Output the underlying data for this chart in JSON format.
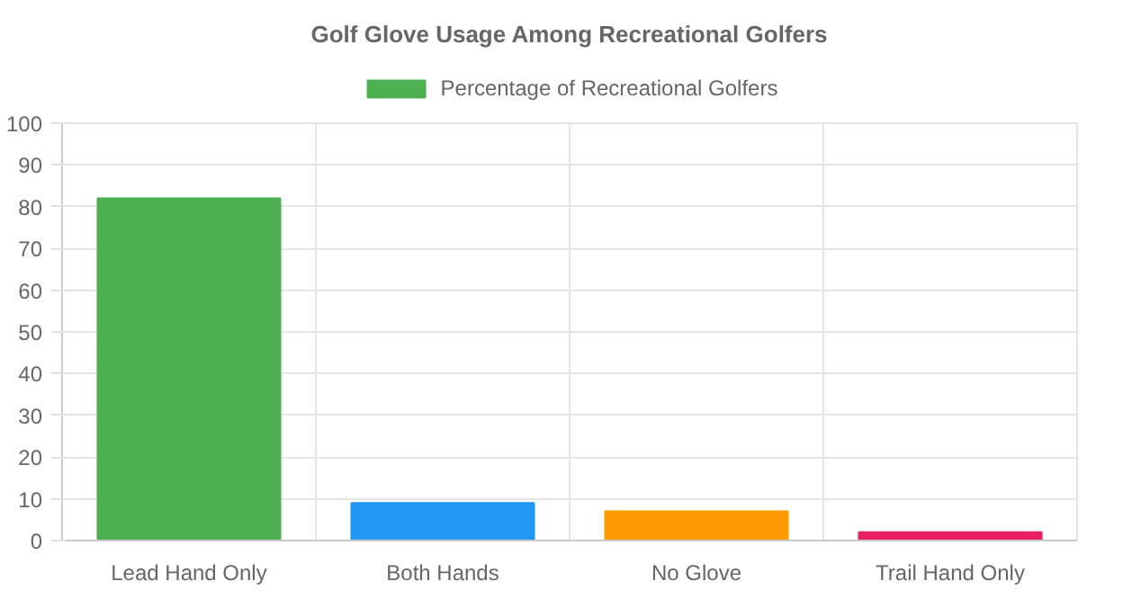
{
  "chart_data": {
    "type": "bar",
    "title": "Golf Glove Usage Among Recreational Golfers",
    "categories": [
      "Lead Hand Only",
      "Both Hands",
      "No Glove",
      "Trail Hand Only"
    ],
    "series": [
      {
        "name": "Percentage of Recreational Golfers",
        "color": "#4caf50",
        "colors": [
          "#4caf50",
          "#2196f3",
          "#ff9800",
          "#e91e63"
        ],
        "values": [
          82,
          9,
          7,
          2
        ]
      }
    ],
    "ylim": [
      0,
      100
    ],
    "yticks": [
      0,
      10,
      20,
      30,
      40,
      50,
      60,
      70,
      80,
      90,
      100
    ],
    "grid": true,
    "legend": "top"
  }
}
